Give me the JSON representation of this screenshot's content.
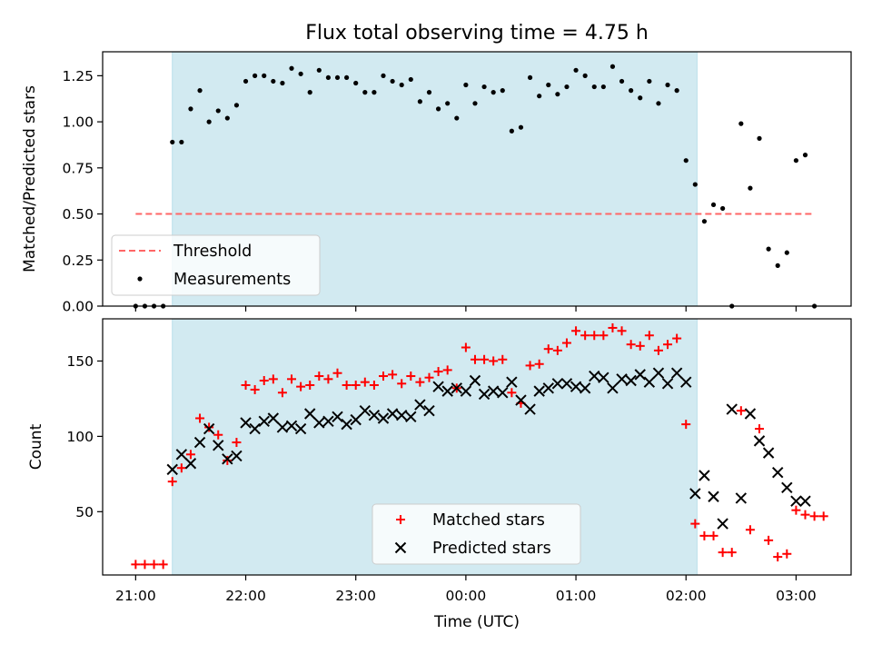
{
  "title": "Flux total observing time = 4.75 h",
  "colors": {
    "shade": "#add8e6",
    "threshold": "#ff6666",
    "measurements": "#000000",
    "matched": "#ff0000",
    "predicted": "#000000"
  },
  "chart_data": [
    {
      "type": "scatter",
      "panel": "top",
      "ylabel": "Matched/Predicted stars",
      "ylim": [
        0,
        1.38
      ],
      "yticks": [
        "0.00",
        "0.25",
        "0.50",
        "0.75",
        "1.00",
        "1.25"
      ],
      "xlim": [
        "20:42",
        "03:30"
      ],
      "grid": false,
      "legend_placement": "lower-left",
      "shaded_interval": [
        "21:20",
        "02:06"
      ],
      "threshold": {
        "name": "Threshold",
        "value": 0.5,
        "x_range": [
          "21:00",
          "03:10"
        ],
        "style": "dashed line"
      },
      "series": [
        {
          "name": "Measurements",
          "marker": "dot",
          "x": [
            "21:00",
            "21:05",
            "21:10",
            "21:15",
            "21:20",
            "21:25",
            "21:30",
            "21:35",
            "21:40",
            "21:45",
            "21:50",
            "21:55",
            "22:00",
            "22:05",
            "22:10",
            "22:15",
            "22:20",
            "22:25",
            "22:30",
            "22:35",
            "22:40",
            "22:45",
            "22:50",
            "22:55",
            "23:00",
            "23:05",
            "23:10",
            "23:15",
            "23:20",
            "23:25",
            "23:30",
            "23:35",
            "23:40",
            "23:45",
            "23:50",
            "23:55",
            "00:00",
            "00:05",
            "00:10",
            "00:15",
            "00:20",
            "00:25",
            "00:30",
            "00:35",
            "00:40",
            "00:45",
            "00:50",
            "00:55",
            "01:00",
            "01:05",
            "01:10",
            "01:15",
            "01:20",
            "01:25",
            "01:30",
            "01:35",
            "01:40",
            "01:45",
            "01:50",
            "01:55",
            "02:00",
            "02:05",
            "02:10",
            "02:15",
            "02:20",
            "02:25",
            "02:30",
            "02:35",
            "02:40",
            "02:45",
            "02:50",
            "02:55",
            "03:00",
            "03:05",
            "03:10"
          ],
          "y": [
            0.0,
            0.0,
            0.0,
            0.0,
            0.89,
            0.89,
            1.07,
            1.17,
            1.0,
            1.06,
            1.02,
            1.09,
            1.22,
            1.25,
            1.25,
            1.22,
            1.21,
            1.29,
            1.26,
            1.16,
            1.28,
            1.24,
            1.24,
            1.24,
            1.21,
            1.16,
            1.16,
            1.25,
            1.22,
            1.2,
            1.23,
            1.11,
            1.16,
            1.07,
            1.1,
            1.02,
            1.2,
            1.1,
            1.19,
            1.16,
            1.17,
            0.95,
            0.97,
            1.24,
            1.14,
            1.2,
            1.15,
            1.19,
            1.28,
            1.25,
            1.19,
            1.19,
            1.3,
            1.22,
            1.17,
            1.13,
            1.22,
            1.1,
            1.2,
            1.17,
            0.79,
            0.66,
            0.46,
            0.55,
            0.53,
            0.0,
            0.99,
            0.64,
            0.91,
            0.31,
            0.22,
            0.29,
            0.79,
            0.82,
            0.0
          ]
        }
      ]
    },
    {
      "type": "scatter",
      "panel": "bottom",
      "xlabel": "Time (UTC)",
      "ylabel": "Count",
      "ylim": [
        8,
        178
      ],
      "yticks": [
        "50",
        "100",
        "150"
      ],
      "xlim": [
        "20:42",
        "03:30"
      ],
      "xticks": [
        "21:00",
        "22:00",
        "23:00",
        "00:00",
        "01:00",
        "02:00",
        "03:00"
      ],
      "grid": false,
      "legend_placement": "lower-center",
      "shaded_interval": [
        "21:20",
        "02:06"
      ],
      "series": [
        {
          "name": "Matched stars",
          "marker": "plus",
          "x": [
            "21:00",
            "21:05",
            "21:10",
            "21:15",
            "21:20",
            "21:25",
            "21:30",
            "21:35",
            "21:40",
            "21:45",
            "21:50",
            "21:55",
            "22:00",
            "22:05",
            "22:10",
            "22:15",
            "22:20",
            "22:25",
            "22:30",
            "22:35",
            "22:40",
            "22:45",
            "22:50",
            "22:55",
            "23:00",
            "23:05",
            "23:10",
            "23:15",
            "23:20",
            "23:25",
            "23:30",
            "23:35",
            "23:40",
            "23:45",
            "23:50",
            "23:55",
            "00:00",
            "00:05",
            "00:10",
            "00:15",
            "00:20",
            "00:25",
            "00:30",
            "00:35",
            "00:40",
            "00:45",
            "00:50",
            "00:55",
            "01:00",
            "01:05",
            "01:10",
            "01:15",
            "01:20",
            "01:25",
            "01:30",
            "01:35",
            "01:40",
            "01:45",
            "01:50",
            "01:55",
            "02:00",
            "02:05",
            "02:10",
            "02:15",
            "02:20",
            "02:25",
            "02:30",
            "02:35",
            "02:40",
            "02:45",
            "02:50",
            "02:55",
            "03:00",
            "03:05",
            "03:10",
            "03:15"
          ],
          "y": [
            15,
            15,
            15,
            15,
            70,
            79,
            88,
            112,
            106,
            101,
            84,
            96,
            134,
            131,
            137,
            138,
            129,
            138,
            133,
            134,
            140,
            138,
            142,
            134,
            134,
            136,
            134,
            140,
            141,
            135,
            140,
            136,
            139,
            143,
            144,
            132,
            159,
            151,
            151,
            150,
            151,
            129,
            122,
            147,
            148,
            158,
            157,
            162,
            170,
            167,
            167,
            167,
            172,
            170,
            161,
            160,
            167,
            157,
            161,
            165,
            108,
            42,
            34,
            34,
            23,
            23,
            117,
            38,
            105,
            31,
            20,
            22,
            51,
            48,
            47,
            47
          ]
        },
        {
          "name": "Predicted stars",
          "marker": "x",
          "x": [
            "21:20",
            "21:25",
            "21:30",
            "21:35",
            "21:40",
            "21:45",
            "21:50",
            "21:55",
            "22:00",
            "22:05",
            "22:10",
            "22:15",
            "22:20",
            "22:25",
            "22:30",
            "22:35",
            "22:40",
            "22:45",
            "22:50",
            "22:55",
            "23:00",
            "23:05",
            "23:10",
            "23:15",
            "23:20",
            "23:25",
            "23:30",
            "23:35",
            "23:40",
            "23:45",
            "23:50",
            "23:55",
            "00:00",
            "00:05",
            "00:10",
            "00:15",
            "00:20",
            "00:25",
            "00:30",
            "00:35",
            "00:40",
            "00:45",
            "00:50",
            "00:55",
            "01:00",
            "01:05",
            "01:10",
            "01:15",
            "01:20",
            "01:25",
            "01:30",
            "01:35",
            "01:40",
            "01:45",
            "01:50",
            "01:55",
            "02:00",
            "02:05",
            "02:10",
            "02:15",
            "02:20",
            "02:25",
            "02:30",
            "02:35",
            "02:40",
            "02:45",
            "02:50",
            "02:55",
            "03:00",
            "03:05"
          ],
          "y": [
            78,
            88,
            82,
            96,
            105,
            94,
            85,
            87,
            109,
            105,
            110,
            112,
            106,
            107,
            105,
            115,
            109,
            110,
            113,
            108,
            111,
            117,
            114,
            112,
            115,
            114,
            113,
            121,
            117,
            133,
            130,
            132,
            130,
            137,
            128,
            130,
            129,
            136,
            124,
            118,
            130,
            132,
            135,
            135,
            133,
            132,
            140,
            139,
            132,
            138,
            137,
            141,
            136,
            142,
            135,
            142,
            136,
            62,
            74,
            60,
            42,
            118,
            59,
            115,
            97,
            89,
            76,
            66,
            57,
            57
          ]
        }
      ]
    }
  ]
}
